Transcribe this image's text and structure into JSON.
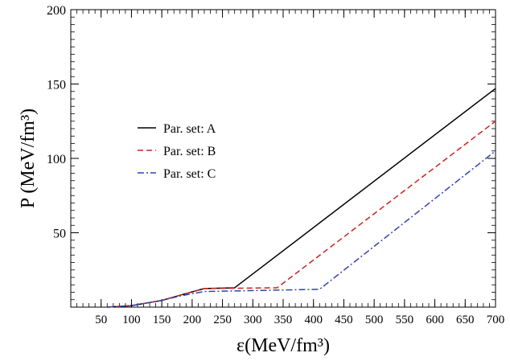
{
  "chart_data": {
    "type": "line",
    "title": "",
    "xlabel": "ε(MeV/fm³)",
    "ylabel": "P (MeV/fm³)",
    "xlim": [
      0,
      700
    ],
    "ylim": [
      0,
      200
    ],
    "x_ticks": [
      50,
      100,
      150,
      200,
      250,
      300,
      350,
      400,
      450,
      500,
      550,
      600,
      650,
      700
    ],
    "y_ticks": [
      50,
      100,
      150,
      200
    ],
    "grid": false,
    "legend_placement": "upper-left",
    "series": [
      {
        "name": "Par. set: A",
        "color": "#000000",
        "dash": "solid",
        "x": [
          60,
          100,
          150,
          180,
          220,
          270,
          700
        ],
        "y": [
          0.0,
          1.0,
          4.5,
          8.0,
          12.5,
          13.0,
          147.0
        ]
      },
      {
        "name": "Par. set: B",
        "color": "#cc2222",
        "dash": "dashed",
        "x": [
          60,
          100,
          150,
          180,
          220,
          340,
          700
        ],
        "y": [
          0.0,
          1.0,
          4.5,
          8.0,
          12.5,
          13.0,
          125.0
        ]
      },
      {
        "name": "Par. set: C",
        "color": "#3344aa",
        "dash": "dashdot",
        "x": [
          60,
          100,
          150,
          180,
          220,
          410,
          700
        ],
        "y": [
          0.0,
          1.0,
          4.5,
          7.5,
          10.5,
          12.0,
          105.0
        ]
      }
    ]
  }
}
